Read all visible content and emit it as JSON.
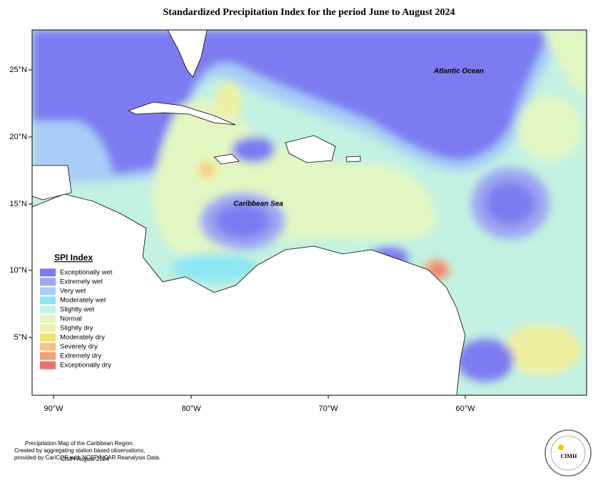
{
  "title": "Standardized Precipitation Index for the period June to August 2024",
  "lat_labels": [
    "25°N",
    "20°N",
    "15°N",
    "10°N",
    "5°N"
  ],
  "lon_labels": [
    "90°W",
    "80°W",
    "70°W",
    "60°W"
  ],
  "places": {
    "atlantic": "Atlantic Ocean",
    "caribbean": "Caribbean Sea"
  },
  "legend": {
    "title": "SPI Index",
    "items": [
      {
        "label": "Exceptionally wet",
        "color": "#7b7bf0"
      },
      {
        "label": "Extremely wet",
        "color": "#9ea6f2"
      },
      {
        "label": "Very wet",
        "color": "#a9cdf6"
      },
      {
        "label": "Moderately wet",
        "color": "#8ee6f2"
      },
      {
        "label": "Slightly wet",
        "color": "#c3f1e2"
      },
      {
        "label": "Normal",
        "color": "#e2f6c2"
      },
      {
        "label": "Slightly dry",
        "color": "#f0f0a2"
      },
      {
        "label": "Moderately dry",
        "color": "#f4e070"
      },
      {
        "label": "Severely dry",
        "color": "#f4c47e"
      },
      {
        "label": "Extremely dry",
        "color": "#f4a070"
      },
      {
        "label": "Exceptionally dry",
        "color": "#f07070"
      }
    ]
  },
  "footer": {
    "lines": [
      "Precipitation Map of the Caribbean Region.",
      "Created by aggregating station based observations,",
      "provided by CariCOF, with NCEP/NCAR Reanalysis Data."
    ],
    "date": "CIMH August-2024"
  },
  "logo": {
    "text": "CIMH"
  }
}
